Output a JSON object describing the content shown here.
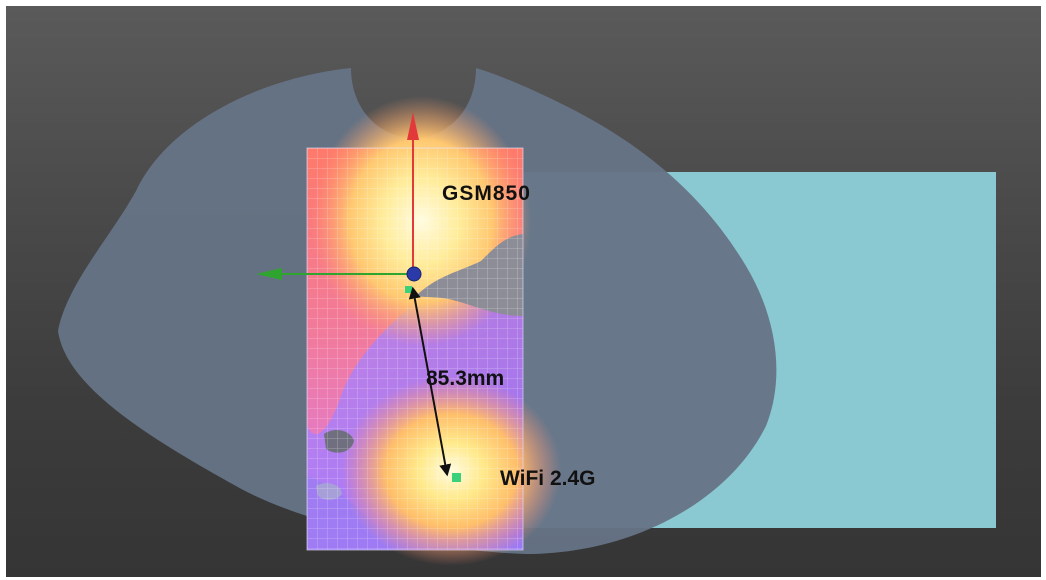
{
  "labels": {
    "antenna_1": "GSM850",
    "distance": "85.3mm",
    "antenna_2": "WiFi 2.4G"
  },
  "colors": {
    "background_top": "#5a5a5a",
    "background_bottom": "#353535",
    "phantom": "#667486",
    "flat_plane": "#8ac9d1",
    "axis_x": "#2fa52f",
    "axis_y": "#e23a3a",
    "origin": "#2a3aa8",
    "feed_marker": "#39d17a"
  },
  "icons": {
    "axis_x": "green-arrow-icon",
    "axis_y": "red-arrow-icon",
    "origin": "origin-sphere-icon"
  }
}
